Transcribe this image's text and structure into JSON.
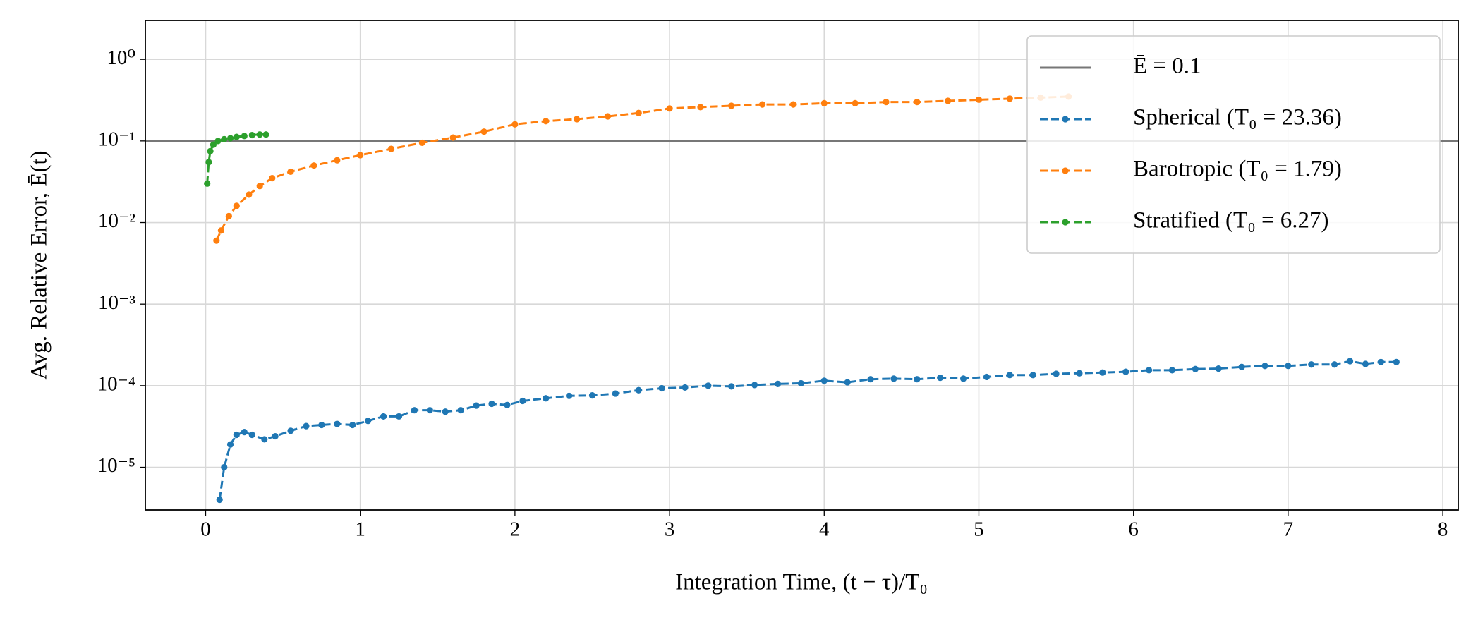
{
  "chart_data": {
    "type": "line",
    "xlabel": "Integration Time, (t − τ)/T₀",
    "ylabel": "Avg. Relative Error, Ē(t)",
    "xlim": [
      -0.39,
      8.1
    ],
    "xticks": [
      0,
      1,
      2,
      3,
      4,
      5,
      6,
      7,
      8
    ],
    "ylim": [
      3e-06,
      3
    ],
    "yticks": [
      {
        "value": 1e-05,
        "label": "10⁻⁵"
      },
      {
        "value": 0.0001,
        "label": "10⁻⁴"
      },
      {
        "value": 0.001,
        "label": "10⁻³"
      },
      {
        "value": 0.01,
        "label": "10⁻²"
      },
      {
        "value": 0.1,
        "label": "10⁻¹"
      },
      {
        "value": 1,
        "label": "10⁰"
      }
    ],
    "log_y": true,
    "grid": true,
    "legend": "upper right",
    "hline": {
      "value": 0.1,
      "label": "Ē = 0.1",
      "color": "#777777"
    },
    "series": [
      {
        "name": "Spherical (T₀ = 23.36)",
        "color": "#1f77b4",
        "x": [
          0.09,
          0.12,
          0.16,
          0.2,
          0.25,
          0.3,
          0.38,
          0.45,
          0.55,
          0.65,
          0.75,
          0.85,
          0.95,
          1.05,
          1.15,
          1.25,
          1.35,
          1.45,
          1.55,
          1.65,
          1.75,
          1.85,
          1.95,
          2.05,
          2.2,
          2.35,
          2.5,
          2.65,
          2.8,
          2.95,
          3.1,
          3.25,
          3.4,
          3.55,
          3.7,
          3.85,
          4.0,
          4.15,
          4.3,
          4.45,
          4.6,
          4.75,
          4.9,
          5.05,
          5.2,
          5.35,
          5.5,
          5.65,
          5.8,
          5.95,
          6.1,
          6.25,
          6.4,
          6.55,
          6.7,
          6.85,
          7.0,
          7.15,
          7.3,
          7.4,
          7.5,
          7.6,
          7.7
        ],
        "values": [
          4e-06,
          1e-05,
          1.9e-05,
          2.5e-05,
          2.7e-05,
          2.5e-05,
          2.2e-05,
          2.4e-05,
          2.8e-05,
          3.2e-05,
          3.3e-05,
          3.4e-05,
          3.3e-05,
          3.7e-05,
          4.2e-05,
          4.2e-05,
          5e-05,
          5e-05,
          4.8e-05,
          5e-05,
          5.7e-05,
          6e-05,
          5.8e-05,
          6.5e-05,
          7e-05,
          7.5e-05,
          7.6e-05,
          8e-05,
          8.8e-05,
          9.3e-05,
          9.5e-05,
          0.0001,
          9.8e-05,
          0.000102,
          0.000105,
          0.000107,
          0.000115,
          0.00011,
          0.00012,
          0.000122,
          0.00012,
          0.000125,
          0.000122,
          0.000128,
          0.000135,
          0.000135,
          0.00014,
          0.000142,
          0.000145,
          0.000148,
          0.000155,
          0.000155,
          0.00016,
          0.000162,
          0.00017,
          0.000175,
          0.000175,
          0.000182,
          0.000182,
          0.0002,
          0.000185,
          0.000195,
          0.000195
        ]
      },
      {
        "name": "Barotropic (T₀ = 1.79)",
        "color": "#ff7f0e",
        "x": [
          0.07,
          0.1,
          0.15,
          0.2,
          0.28,
          0.35,
          0.43,
          0.55,
          0.7,
          0.85,
          1.0,
          1.2,
          1.4,
          1.6,
          1.8,
          2.0,
          2.2,
          2.4,
          2.6,
          2.8,
          3.0,
          3.2,
          3.4,
          3.6,
          3.8,
          4.0,
          4.2,
          4.4,
          4.6,
          4.8,
          5.0,
          5.2,
          5.4,
          5.58
        ],
        "values": [
          0.006,
          0.008,
          0.012,
          0.016,
          0.022,
          0.028,
          0.035,
          0.042,
          0.05,
          0.058,
          0.067,
          0.08,
          0.095,
          0.11,
          0.13,
          0.16,
          0.175,
          0.185,
          0.2,
          0.22,
          0.25,
          0.26,
          0.27,
          0.28,
          0.28,
          0.29,
          0.29,
          0.3,
          0.3,
          0.31,
          0.32,
          0.33,
          0.34,
          0.35
        ]
      },
      {
        "name": "Stratified (T₀ = 6.27)",
        "color": "#2ca02c",
        "x": [
          0.01,
          0.02,
          0.03,
          0.05,
          0.08,
          0.12,
          0.16,
          0.2,
          0.25,
          0.3,
          0.35,
          0.39
        ],
        "values": [
          0.03,
          0.055,
          0.075,
          0.09,
          0.1,
          0.105,
          0.108,
          0.112,
          0.115,
          0.118,
          0.12,
          0.12
        ]
      }
    ]
  }
}
